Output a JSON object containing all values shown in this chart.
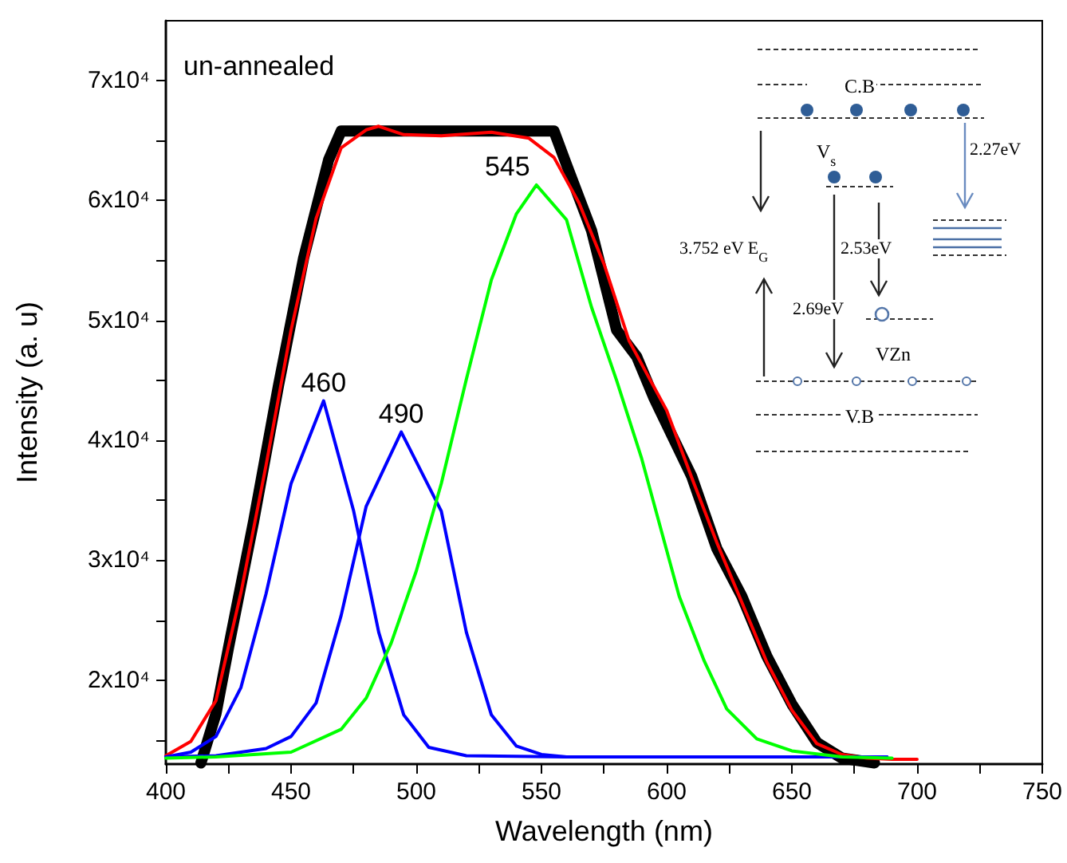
{
  "chart_data": {
    "type": "line",
    "xlabel": "Wavelength (nm)",
    "ylabel": "Intensity (a. u)",
    "xlim": [
      400,
      750
    ],
    "xticks": [
      400,
      {
        "value": 425,
        "label": null
      },
      450,
      {
        "value": 475,
        "label": null
      },
      500,
      {
        "value": 525,
        "label": null
      },
      550,
      {
        "value": 575,
        "label": null
      },
      600,
      {
        "value": 625,
        "label": null
      },
      650,
      {
        "value": 675,
        "label": null
      },
      700,
      {
        "value": 725,
        "label": null
      },
      750
    ],
    "ylim": [
      13000,
      75000
    ],
    "yticks": [
      {
        "value": 15000,
        "label": null
      },
      {
        "value": 20000,
        "label": "2x10⁴"
      },
      {
        "value": 25000,
        "label": null
      },
      {
        "value": 30000,
        "label": "3x10⁴"
      },
      {
        "value": 35000,
        "label": null
      },
      {
        "value": 40000,
        "label": "4x10⁴"
      },
      {
        "value": 45000,
        "label": null
      },
      {
        "value": 50000,
        "label": "5x10⁴"
      },
      {
        "value": 55000,
        "label": null
      },
      {
        "value": 60000,
        "label": "6x10⁴"
      },
      {
        "value": 65000,
        "label": null
      },
      {
        "value": 70000,
        "label": "7x10⁴"
      }
    ],
    "grid": false,
    "marker": "none",
    "line_style": "solid",
    "series": [
      {
        "color": "#000000",
        "x": [
          414,
          420,
          425,
          435,
          445,
          455,
          465,
          470,
          480,
          500,
          520,
          540,
          555,
          560,
          570,
          580,
          588,
          595,
          610,
          620,
          630,
          640,
          650,
          660,
          670,
          683
        ],
        "values": [
          13100,
          17200,
          22700,
          33200,
          44600,
          55200,
          63400,
          65800,
          65800,
          65800,
          65800,
          65800,
          65800,
          63000,
          57500,
          49200,
          47000,
          43500,
          37000,
          31000,
          27000,
          22000,
          18000,
          14800,
          13500,
          13100
        ]
      },
      {
        "color": "#ff0000",
        "x": [
          400,
          410,
          420,
          430,
          440,
          450,
          460,
          470,
          480,
          485,
          495,
          510,
          530,
          545,
          555,
          565,
          575,
          585,
          600,
          610,
          620,
          630,
          640,
          650,
          660,
          670,
          680,
          690,
          700
        ],
        "values": [
          13700,
          14900,
          18300,
          27300,
          37900,
          49200,
          58500,
          64400,
          65900,
          66200,
          65500,
          65400,
          65700,
          65200,
          63600,
          59800,
          54700,
          48300,
          42500,
          36900,
          31500,
          26500,
          21500,
          17500,
          14700,
          13800,
          13500,
          13400,
          13400
        ]
      },
      {
        "color": "#0000ff",
        "x": [
          400,
          410,
          420,
          430,
          440,
          450,
          463,
          475,
          485,
          495,
          505,
          520,
          560,
          620,
          688
        ],
        "values": [
          13600,
          14000,
          15300,
          19400,
          27200,
          36400,
          43300,
          34100,
          24000,
          17100,
          14400,
          13700,
          13600,
          13600,
          13600
        ]
      },
      {
        "color": "#0000ff",
        "x": [
          400,
          420,
          440,
          450,
          460,
          470,
          480,
          494,
          510,
          520,
          530,
          540,
          550,
          560,
          620,
          688
        ],
        "values": [
          13600,
          13700,
          14300,
          15300,
          18100,
          25400,
          34500,
          40700,
          34100,
          24000,
          17100,
          14500,
          13800,
          13600,
          13600,
          13600
        ]
      },
      {
        "color": "#00ff00",
        "x": [
          400,
          420,
          450,
          470,
          480,
          490,
          500,
          510,
          520,
          530,
          540,
          548,
          560,
          570,
          580,
          590,
          605,
          615,
          624,
          636,
          650,
          670,
          690
        ],
        "values": [
          13500,
          13600,
          14000,
          15900,
          18500,
          23100,
          29100,
          36400,
          45100,
          53400,
          58900,
          61300,
          58400,
          51100,
          45000,
          38500,
          27000,
          21600,
          17600,
          15100,
          14100,
          13600,
          13500
        ]
      }
    ],
    "annotations": [
      "un-annealed",
      {
        "text": "460",
        "x": 463,
        "y": 43300
      },
      {
        "text": "490",
        "x": 494,
        "y": 40700
      },
      {
        "text": "545",
        "x": 548,
        "y": 61300
      },
      "C.B",
      "V$_{s}$",
      "2.27eV",
      "3.752 eV E$_{G}$",
      "2.53eV",
      "2.69eV",
      "VZn",
      "V.B"
    ]
  }
}
